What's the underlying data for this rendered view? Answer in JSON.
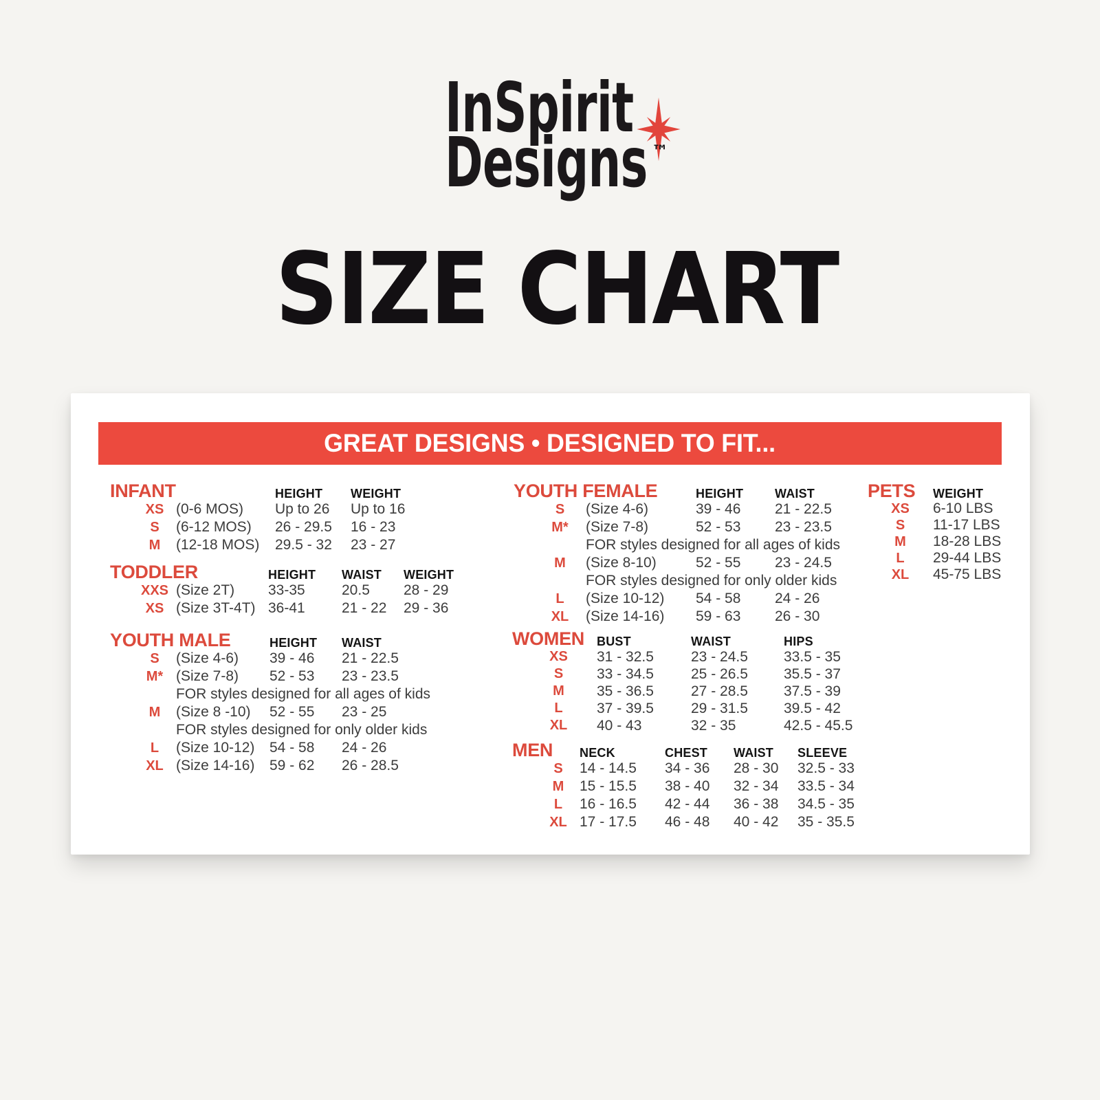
{
  "page": {
    "background_color": "#f5f4f1",
    "title": "SIZE CHART"
  },
  "logo": {
    "line1": "InSpirit",
    "line2": "Designs",
    "trademark": "™",
    "star_color": "#e2453c",
    "text_color": "#1b181a"
  },
  "banner": {
    "text": "GREAT DESIGNS • DESIGNED TO FIT...",
    "background_color": "#ec4a3e",
    "text_color": "#ffffff"
  },
  "accent_red": "#dc4a3c",
  "sections": [
    {
      "id": "infant",
      "title": "INFANT",
      "headers": [
        "HEIGHT",
        "WEIGHT"
      ],
      "rows": [
        {
          "size": "XS",
          "desc": "(0-6 MOS)",
          "values": [
            "Up to 26",
            "Up to 16"
          ]
        },
        {
          "size": "S",
          "desc": "(6-12 MOS)",
          "values": [
            "26 - 29.5",
            "16 - 23"
          ]
        },
        {
          "size": "M",
          "desc": "(12-18 MOS)",
          "values": [
            "29.5 - 32",
            "23 - 27"
          ]
        }
      ]
    },
    {
      "id": "toddler",
      "title": "TODDLER",
      "headers": [
        "HEIGHT",
        "WAIST",
        "WEIGHT"
      ],
      "rows": [
        {
          "size": "XXS",
          "desc": "(Size 2T)",
          "values": [
            "33-35",
            "20.5",
            "28 - 29"
          ]
        },
        {
          "size": "XS",
          "desc": "(Size 3T-4T)",
          "values": [
            "36-41",
            "21 - 22",
            "29 - 36"
          ]
        }
      ]
    },
    {
      "id": "youth-male",
      "title": "YOUTH MALE",
      "headers": [
        "HEIGHT",
        "WAIST"
      ],
      "rows": [
        {
          "size": "S",
          "desc": "(Size 4-6)",
          "values": [
            "39 - 46",
            "21 - 22.5"
          ]
        },
        {
          "size": "M*",
          "desc": "(Size 7-8)",
          "values": [
            "52 - 53",
            "23 - 23.5"
          ]
        },
        {
          "note": "FOR styles designed for all ages of kids"
        },
        {
          "size": "M",
          "desc": "(Size 8 -10)",
          "values": [
            "52 - 55",
            "23 - 25"
          ]
        },
        {
          "note": "FOR styles designed for only older kids"
        },
        {
          "size": "L",
          "desc": "(Size 10-12)",
          "values": [
            "54 - 58",
            "24 - 26"
          ]
        },
        {
          "size": "XL",
          "desc": "(Size 14-16)",
          "values": [
            "59 - 62",
            "26 - 28.5"
          ]
        }
      ]
    },
    {
      "id": "youth-female",
      "title": "YOUTH FEMALE",
      "headers": [
        "HEIGHT",
        "WAIST"
      ],
      "rows": [
        {
          "size": "S",
          "desc": "(Size 4-6)",
          "values": [
            "39 - 46",
            "21 - 22.5"
          ]
        },
        {
          "size": "M*",
          "desc": "(Size 7-8)",
          "values": [
            "52 - 53",
            "23 - 23.5"
          ]
        },
        {
          "note": "FOR styles designed for all ages of kids"
        },
        {
          "size": "M",
          "desc": "(Size 8-10)",
          "values": [
            "52 - 55",
            "23 - 24.5"
          ]
        },
        {
          "note": "FOR styles designed for only older kids"
        },
        {
          "size": "L",
          "desc": "(Size 10-12)",
          "values": [
            "54 - 58",
            "24 - 26"
          ]
        },
        {
          "size": "XL",
          "desc": "(Size 14-16)",
          "values": [
            "59 - 63",
            "26 - 30"
          ]
        }
      ]
    },
    {
      "id": "women",
      "title": "WOMEN",
      "headers": [
        "BUST",
        "WAIST",
        "HIPS"
      ],
      "rows": [
        {
          "size": "XS",
          "values": [
            "31 - 32.5",
            "23 - 24.5",
            "33.5 - 35"
          ]
        },
        {
          "size": "S",
          "values": [
            "33 - 34.5",
            "25 - 26.5",
            "35.5 - 37"
          ]
        },
        {
          "size": "M",
          "values": [
            "35 - 36.5",
            "27 - 28.5",
            "37.5 - 39"
          ]
        },
        {
          "size": "L",
          "values": [
            "37 - 39.5",
            "29 - 31.5",
            "39.5 - 42"
          ]
        },
        {
          "size": "XL",
          "values": [
            "40 - 43",
            "32 - 35",
            "42.5 - 45.5"
          ]
        }
      ]
    },
    {
      "id": "men",
      "title": "MEN",
      "headers": [
        "NECK",
        "CHEST",
        "WAIST",
        "SLEEVE"
      ],
      "rows": [
        {
          "size": "S",
          "values": [
            "14 - 14.5",
            "34 - 36",
            "28 - 30",
            "32.5 - 33"
          ]
        },
        {
          "size": "M",
          "values": [
            "15 - 15.5",
            "38 - 40",
            "32 - 34",
            "33.5 - 34"
          ]
        },
        {
          "size": "L",
          "values": [
            "16 - 16.5",
            "42 - 44",
            "36 - 38",
            "34.5 - 35"
          ]
        },
        {
          "size": "XL",
          "values": [
            "17 - 17.5",
            "46 - 48",
            "40 - 42",
            "35 - 35.5"
          ]
        }
      ]
    },
    {
      "id": "pets",
      "title": "PETS",
      "headers": [
        "WEIGHT"
      ],
      "rows": [
        {
          "size": "XS",
          "values": [
            "6-10 LBS"
          ]
        },
        {
          "size": "S",
          "values": [
            "11-17 LBS"
          ]
        },
        {
          "size": "M",
          "values": [
            "18-28 LBS"
          ]
        },
        {
          "size": "L",
          "values": [
            "29-44 LBS"
          ]
        },
        {
          "size": "XL",
          "values": [
            "45-75 LBS"
          ]
        }
      ]
    }
  ]
}
